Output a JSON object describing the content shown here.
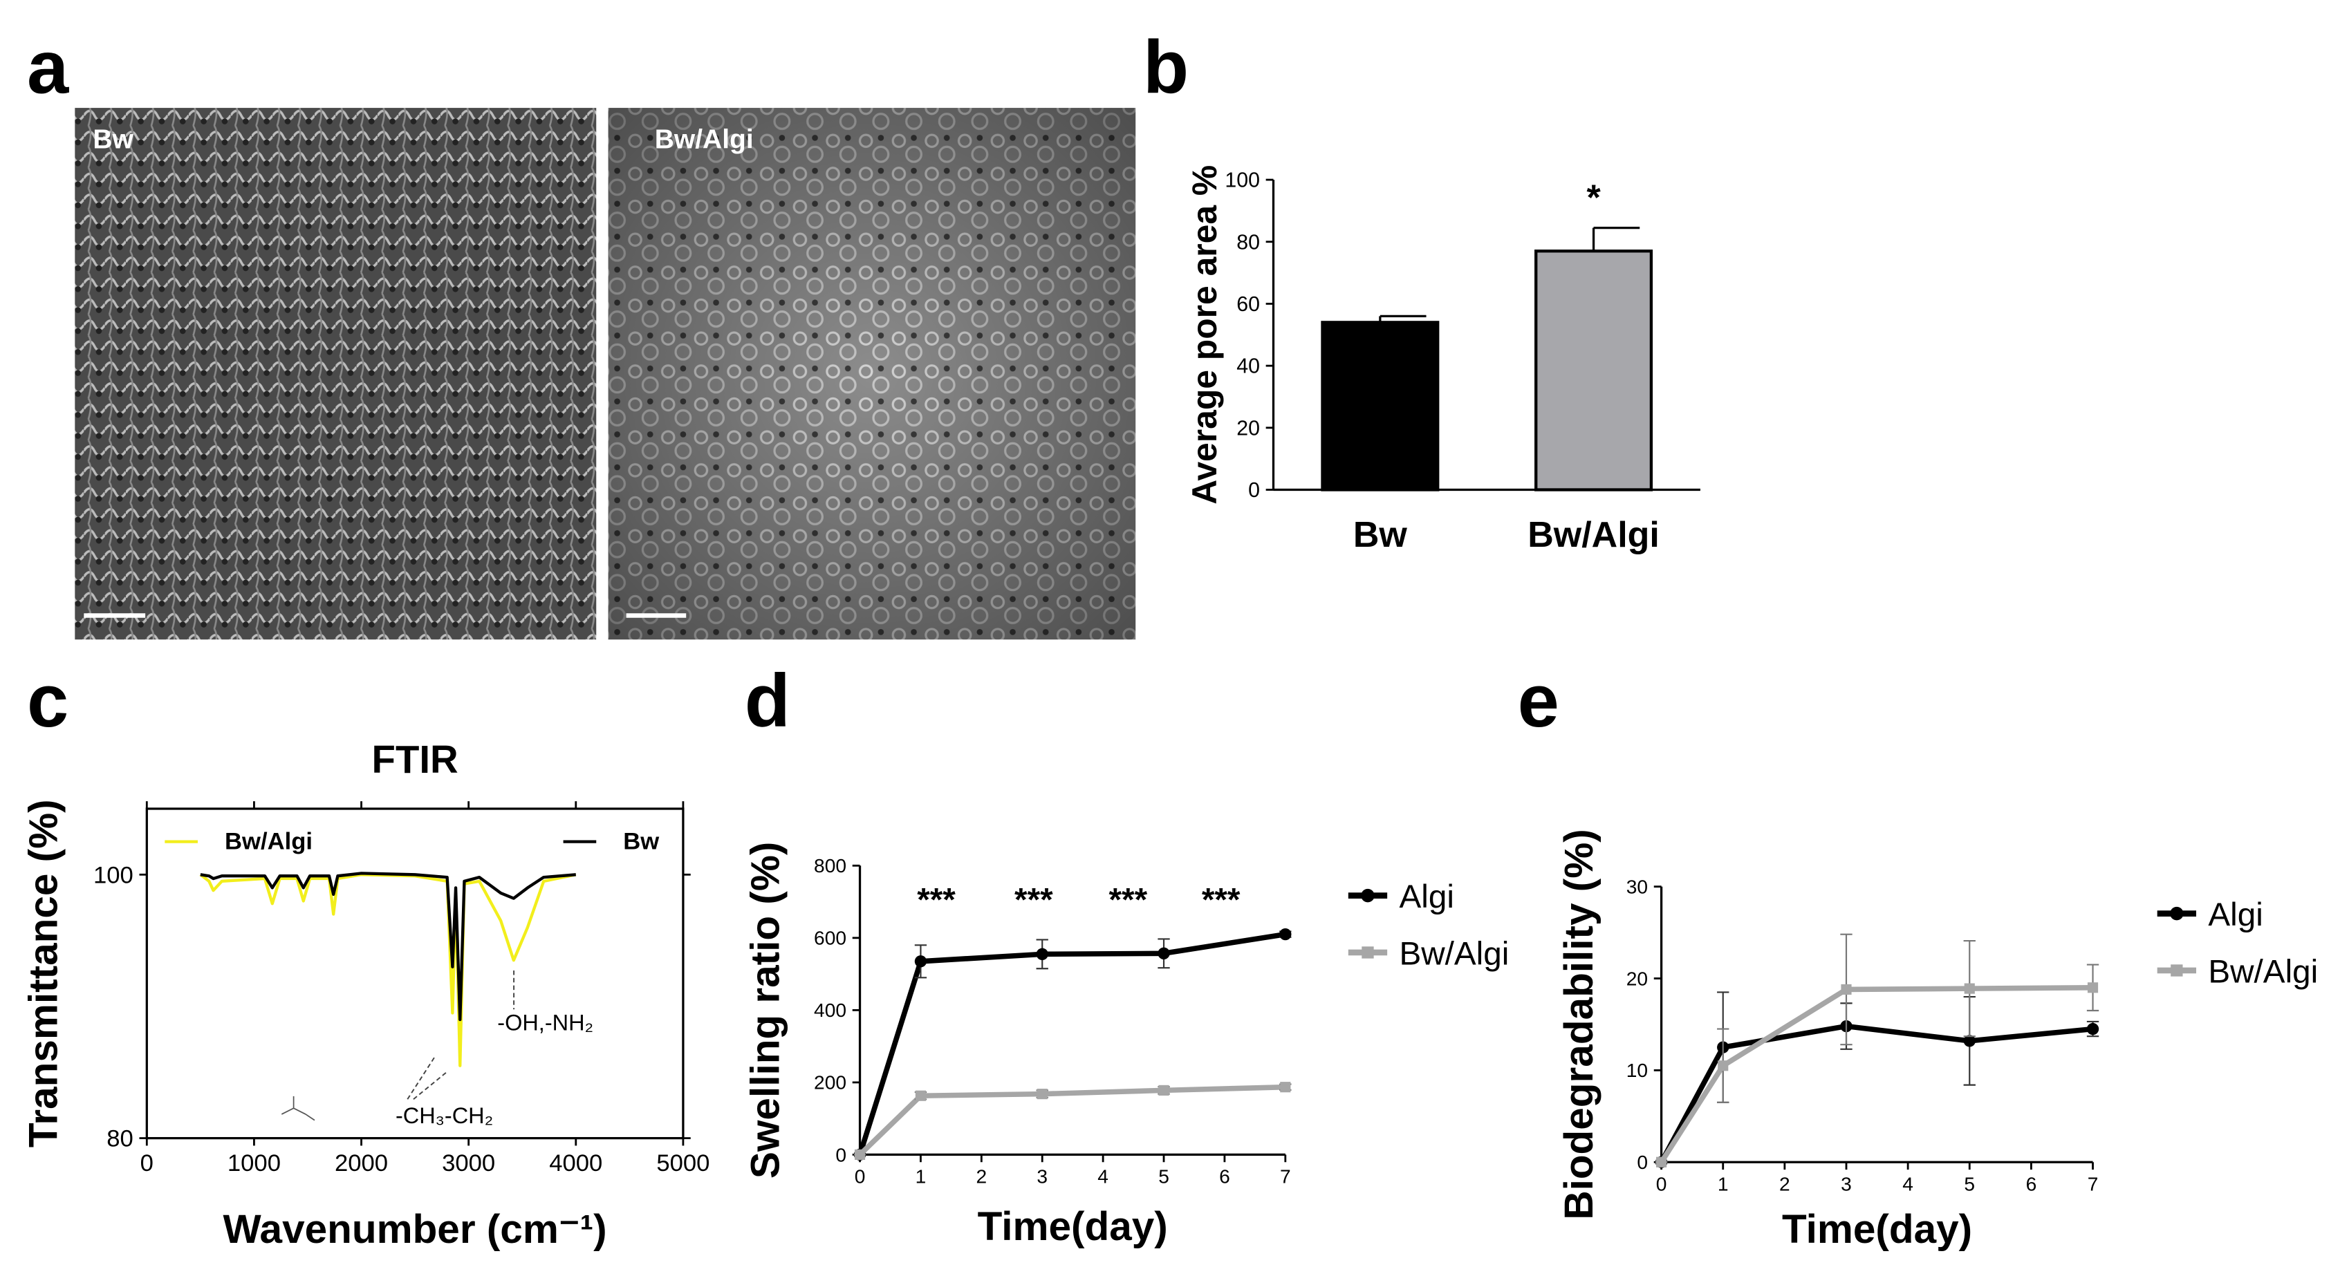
{
  "panel_labels": [
    "a",
    "b",
    "c",
    "d",
    "e"
  ],
  "images": [
    {
      "label": "Bw"
    },
    {
      "label": "Bw/Algi"
    }
  ],
  "chart_data": [
    {
      "type": "bar",
      "ylabel": "Average pore area %",
      "categories": [
        "Bw",
        "Bw/Algi"
      ],
      "values": [
        54,
        77
      ],
      "errors": [
        2,
        7.5
      ],
      "colors": [
        "#000000",
        "#a7a7ab"
      ],
      "ylim": [
        0,
        100
      ],
      "yticks": [
        0,
        20,
        40,
        60,
        80,
        100
      ],
      "annotations": [
        "*"
      ]
    },
    {
      "type": "line",
      "title": "FTIR",
      "xlabel": "Wavenumber (cm⁻¹)",
      "ylabel": "Transmittance (%)",
      "x": [
        500,
        580,
        620,
        700,
        1100,
        1170,
        1240,
        1400,
        1460,
        1520,
        1700,
        1740,
        1780,
        2000,
        2500,
        2800,
        2850,
        2880,
        2920,
        2960,
        3100,
        3300,
        3420,
        3550,
        3700,
        4000
      ],
      "series": [
        {
          "name": "Bw/Algi",
          "color": "#f2ee1c",
          "values": [
            100,
            99.5,
            98.8,
            99.5,
            99.7,
            97.8,
            99.7,
            99.7,
            98,
            99.7,
            99.7,
            97,
            99.7,
            100,
            99.9,
            99.5,
            89.5,
            98.5,
            85.5,
            99.3,
            99.5,
            96.5,
            93.5,
            96,
            99.5,
            100
          ]
        },
        {
          "name": "Bw",
          "color": "#000000",
          "values": [
            100,
            99.9,
            99.7,
            99.9,
            99.9,
            99,
            99.9,
            99.9,
            99,
            99.9,
            99.9,
            98.5,
            99.9,
            100.1,
            100,
            99.8,
            93,
            99,
            89,
            99.5,
            99.8,
            98.6,
            98.2,
            99,
            99.8,
            100
          ]
        }
      ],
      "xlim": [
        0,
        5000
      ],
      "xticks": [
        0,
        1000,
        2000,
        3000,
        4000,
        5000
      ],
      "ylim": [
        80,
        105
      ],
      "yticks": [
        80,
        100
      ],
      "annotations": [
        "-OH,-NH₂",
        "-CH₃-CH₂"
      ],
      "frame": true,
      "legend": "top"
    },
    {
      "type": "line",
      "xlabel": "Time(day)",
      "ylabel": "Swelling ratio (%)",
      "x": [
        0,
        1,
        3,
        5,
        7
      ],
      "series": [
        {
          "name": "Algi",
          "color": "#000000",
          "marker": "circle",
          "values": [
            0,
            535,
            555,
            557,
            610
          ],
          "errors": [
            0,
            45,
            40,
            40,
            8
          ]
        },
        {
          "name": "Bw/Algi",
          "color": "#a6a6a6",
          "marker": "square",
          "values": [
            0,
            163,
            168,
            178,
            187
          ],
          "errors": [
            0,
            10,
            10,
            10,
            8
          ]
        }
      ],
      "xlim": [
        0,
        7
      ],
      "xticks": [
        0,
        1,
        2,
        3,
        4,
        5,
        6,
        7
      ],
      "ylim": [
        0,
        800
      ],
      "yticks": [
        0,
        200,
        400,
        600,
        800
      ],
      "annotations": [
        "***",
        "***",
        "***",
        "***"
      ],
      "frame": false,
      "legend": "right"
    },
    {
      "type": "line",
      "xlabel": "Time(day)",
      "ylabel": "Biodegradability (%)",
      "x": [
        0,
        1,
        3,
        5,
        7
      ],
      "series": [
        {
          "name": "Algi",
          "color": "#000000",
          "marker": "circle",
          "values": [
            0,
            12.5,
            14.8,
            13.2,
            14.5
          ],
          "errors": [
            0,
            6,
            2.5,
            4.8,
            0.8
          ]
        },
        {
          "name": "Bw/Algi",
          "color": "#a6a6a6",
          "marker": "square",
          "values": [
            0,
            10.5,
            18.8,
            18.9,
            19
          ],
          "errors": [
            0,
            4,
            6,
            5.2,
            2.5
          ]
        }
      ],
      "xlim": [
        0,
        7
      ],
      "xticks": [
        0,
        1,
        2,
        3,
        4,
        5,
        6,
        7
      ],
      "ylim": [
        0,
        30
      ],
      "yticks": [
        0,
        10,
        20,
        30
      ],
      "frame": false,
      "legend": "right"
    }
  ]
}
